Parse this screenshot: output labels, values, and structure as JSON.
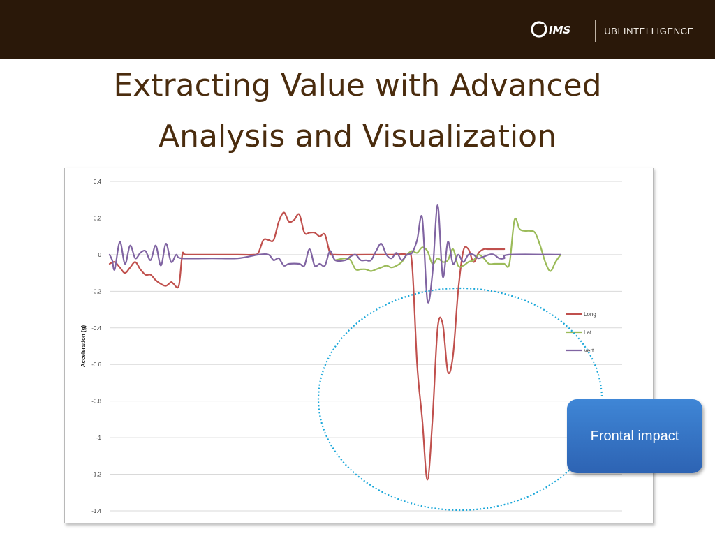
{
  "header": {
    "brand_mark": "IMS",
    "brand_name": "UBI INTELLIGENCE",
    "bar_color": "#2a1809"
  },
  "slide": {
    "title_line1": "Extracting Value with Advanced",
    "title_line2": "Analysis and Visualization"
  },
  "callout": {
    "label": "Frontal impact",
    "color": "#3574c4"
  },
  "highlight_ellipse": {
    "color": "#1aa7d9",
    "style": "dotted"
  },
  "chart_data": {
    "type": "line",
    "title": "",
    "xlabel": "",
    "ylabel": "Acceleration (g)",
    "ylim": [
      -1.4,
      0.4
    ],
    "yticks": [
      0.4,
      0.2,
      0,
      -0.2,
      -0.4,
      -0.6,
      -0.8,
      -1,
      -1.2,
      -1.4
    ],
    "ytick_labels": [
      "0.4",
      "0.2",
      "0",
      "-0.2",
      "-0.4",
      "-0.6",
      "-0.8",
      "-1",
      "-1.2",
      "-1.4"
    ],
    "xlim": [
      0,
      100
    ],
    "x_tick_labels_shown": false,
    "grid": "horizontal",
    "legend_position": "right",
    "series": [
      {
        "name": "Long",
        "color": "#c0504d",
        "points": [
          [
            0,
            -0.05
          ],
          [
            1,
            -0.04
          ],
          [
            2,
            -0.07
          ],
          [
            3,
            -0.1
          ],
          [
            4,
            -0.07
          ],
          [
            5,
            -0.04
          ],
          [
            6,
            -0.08
          ],
          [
            7,
            -0.11
          ],
          [
            8,
            -0.11
          ],
          [
            9,
            -0.14
          ],
          [
            10,
            -0.16
          ],
          [
            11,
            -0.17
          ],
          [
            12,
            -0.15
          ],
          [
            12.5,
            -0.16
          ],
          [
            13.5,
            -0.17
          ],
          [
            14.2,
            0
          ],
          [
            15,
            0
          ],
          [
            20,
            0
          ],
          [
            25,
            0
          ],
          [
            28,
            0
          ],
          [
            29,
            0.01
          ],
          [
            30,
            0.08
          ],
          [
            31,
            0.08
          ],
          [
            32,
            0.08
          ],
          [
            33,
            0.18
          ],
          [
            34,
            0.23
          ],
          [
            35,
            0.18
          ],
          [
            36,
            0.19
          ],
          [
            37,
            0.22
          ],
          [
            38,
            0.12
          ],
          [
            39,
            0.12
          ],
          [
            40,
            0.12
          ],
          [
            41,
            0.1
          ],
          [
            42,
            0.11
          ],
          [
            43,
            0.01
          ],
          [
            44,
            0
          ],
          [
            50,
            0
          ],
          [
            55,
            0
          ],
          [
            58,
            0
          ],
          [
            59,
            -0.05
          ],
          [
            60,
            -0.6
          ],
          [
            61,
            -0.9
          ],
          [
            62,
            -1.23
          ],
          [
            63,
            -0.9
          ],
          [
            64,
            -0.4
          ],
          [
            65,
            -0.38
          ],
          [
            66,
            -0.64
          ],
          [
            67,
            -0.55
          ],
          [
            68,
            -0.2
          ],
          [
            69,
            0.02
          ],
          [
            70,
            0.03
          ],
          [
            71,
            -0.04
          ],
          [
            72,
            0.01
          ],
          [
            73,
            0.03
          ],
          [
            74,
            0.03
          ],
          [
            77,
            0.03
          ]
        ]
      },
      {
        "name": "Lat",
        "color": "#9bbb59",
        "points": [
          [
            44,
            -0.03
          ],
          [
            46,
            -0.02
          ],
          [
            47,
            -0.03
          ],
          [
            48,
            -0.08
          ],
          [
            49,
            -0.08
          ],
          [
            50,
            -0.08
          ],
          [
            51,
            -0.09
          ],
          [
            52,
            -0.08
          ],
          [
            53,
            -0.07
          ],
          [
            54,
            -0.06
          ],
          [
            55,
            -0.07
          ],
          [
            56,
            -0.06
          ],
          [
            57,
            -0.04
          ],
          [
            58,
            0
          ],
          [
            59,
            0.02
          ],
          [
            60,
            0.01
          ],
          [
            61,
            0.04
          ],
          [
            62,
            0.02
          ],
          [
            63,
            -0.05
          ],
          [
            64,
            -0.02
          ],
          [
            65,
            -0.04
          ],
          [
            66,
            -0.03
          ],
          [
            67,
            0.03
          ],
          [
            68,
            -0.06
          ],
          [
            69,
            -0.06
          ],
          [
            70,
            -0.04
          ],
          [
            71,
            -0.03
          ],
          [
            72,
            0
          ],
          [
            73,
            -0.02
          ],
          [
            74,
            -0.05
          ],
          [
            75,
            -0.05
          ],
          [
            76,
            -0.05
          ],
          [
            77,
            -0.05
          ],
          [
            78,
            -0.05
          ],
          [
            79,
            0.19
          ],
          [
            80,
            0.14
          ],
          [
            81,
            0.13
          ],
          [
            82,
            0.13
          ],
          [
            83,
            0.12
          ],
          [
            84,
            0.05
          ],
          [
            85,
            -0.04
          ],
          [
            86,
            -0.09
          ],
          [
            87,
            -0.04
          ],
          [
            88,
            0
          ]
        ]
      },
      {
        "name": "Vert",
        "color": "#8064a2",
        "points": [
          [
            0,
            0
          ],
          [
            0.5,
            -0.03
          ],
          [
            1,
            -0.08
          ],
          [
            2,
            0.07
          ],
          [
            3,
            -0.05
          ],
          [
            4,
            0.05
          ],
          [
            5,
            -0.02
          ],
          [
            6,
            0.01
          ],
          [
            7,
            0.02
          ],
          [
            8,
            -0.03
          ],
          [
            9,
            0.05
          ],
          [
            10,
            -0.06
          ],
          [
            11,
            0.06
          ],
          [
            12,
            -0.04
          ],
          [
            13,
            0
          ],
          [
            14,
            -0.02
          ],
          [
            20,
            -0.02
          ],
          [
            25,
            -0.02
          ],
          [
            29,
            0
          ],
          [
            31,
            0
          ],
          [
            32,
            -0.03
          ],
          [
            33,
            -0.02
          ],
          [
            34,
            -0.06
          ],
          [
            35,
            -0.05
          ],
          [
            37,
            -0.05
          ],
          [
            38,
            -0.06
          ],
          [
            39,
            0.03
          ],
          [
            40,
            -0.06
          ],
          [
            41,
            -0.05
          ],
          [
            42,
            -0.06
          ],
          [
            43,
            0.02
          ],
          [
            44,
            -0.03
          ],
          [
            46,
            -0.03
          ],
          [
            47,
            -0.01
          ],
          [
            48,
            0
          ],
          [
            49,
            -0.03
          ],
          [
            50,
            -0.03
          ],
          [
            51,
            -0.03
          ],
          [
            52,
            0.02
          ],
          [
            53,
            0.06
          ],
          [
            54,
            0
          ],
          [
            55,
            -0.02
          ],
          [
            56,
            0.01
          ],
          [
            57,
            -0.03
          ],
          [
            58,
            0
          ],
          [
            59,
            0.01
          ],
          [
            60,
            0.08
          ],
          [
            61,
            0.2
          ],
          [
            62,
            -0.25
          ],
          [
            63,
            -0.1
          ],
          [
            64,
            0.27
          ],
          [
            65,
            -0.12
          ],
          [
            66,
            0.07
          ],
          [
            67,
            -0.05
          ],
          [
            68,
            0
          ],
          [
            69,
            -0.04
          ],
          [
            70,
            0
          ],
          [
            71,
            0
          ],
          [
            72,
            -0.02
          ],
          [
            74,
            0
          ],
          [
            75,
            0
          ],
          [
            76,
            -0.02
          ],
          [
            77,
            -0.02
          ],
          [
            78,
            0
          ],
          [
            88,
            0
          ]
        ]
      }
    ]
  }
}
